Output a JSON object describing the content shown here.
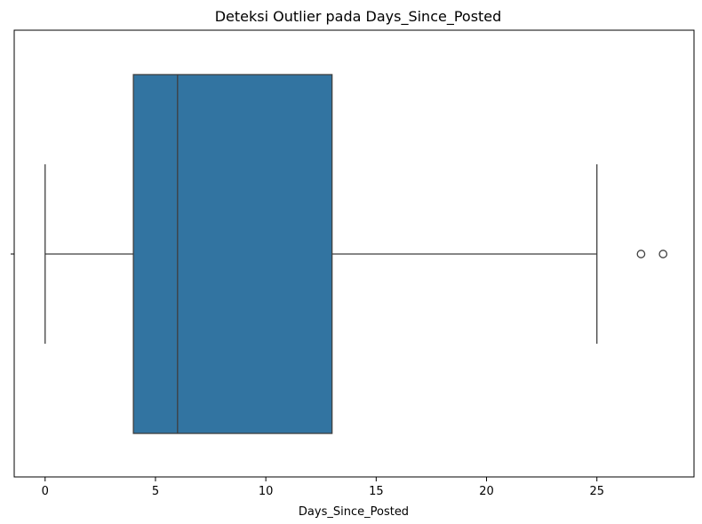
{
  "chart_data": {
    "type": "boxplot",
    "title": "Deteksi Outlier pada Days_Since_Posted",
    "xlabel": "Days_Since_Posted",
    "ylabel": "",
    "xlim": [
      -1.4,
      29.4
    ],
    "xticks": [
      0,
      5,
      10,
      15,
      20,
      25
    ],
    "xtick_labels": [
      "0",
      "5",
      "10",
      "15",
      "20",
      "25"
    ],
    "orientation": "horizontal",
    "grid": false,
    "series": [
      {
        "whisker_low": 0,
        "q1": 4,
        "median": 6,
        "q3": 13,
        "whisker_high": 25,
        "outliers": [
          27,
          28
        ]
      }
    ],
    "colors": {
      "box_fill": "#3274a1",
      "line": "#3f3f3f"
    }
  }
}
